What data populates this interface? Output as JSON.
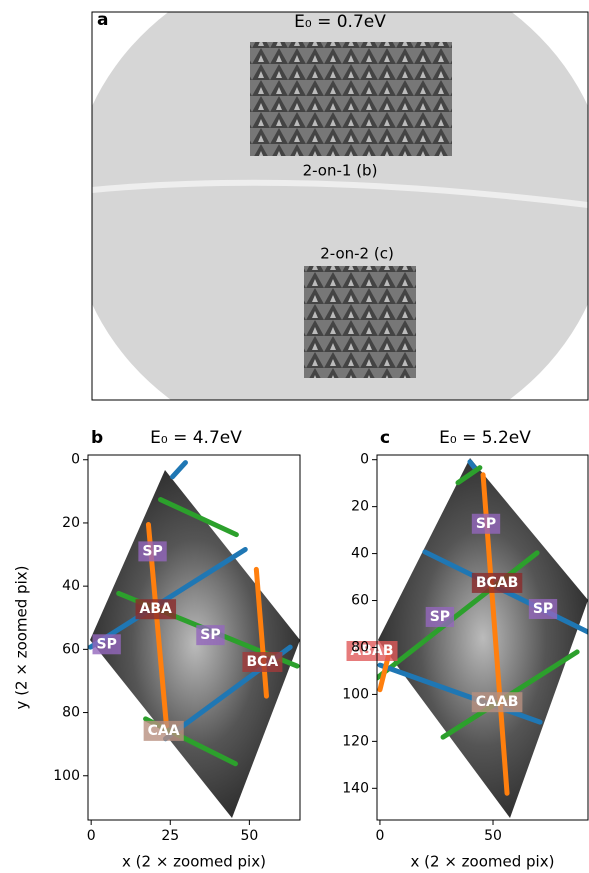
{
  "chart_data": [
    {
      "type": "image",
      "panel_label": "a",
      "title": "E₀ = 0.7eV",
      "annotations": [
        {
          "text": "2-on-1 (b)"
        },
        {
          "text": "2-on-2 (c)"
        }
      ]
    },
    {
      "type": "line",
      "panel_label": "b",
      "title": "E₀ = 4.7eV",
      "xlabel": "x (2 × zoomed pix)",
      "ylabel": "y (2 × zoomed pix)",
      "xlim": [
        -1,
        66
      ],
      "ylim": [
        114,
        -1.5
      ],
      "xticks": [
        0,
        25,
        50
      ],
      "yticks": [
        0,
        20,
        40,
        60,
        80,
        100
      ],
      "series": [
        {
          "color": "#1f77b4",
          "x": [
            25.7,
            29.8
          ],
          "y": [
            5.4,
            0.9
          ]
        },
        {
          "color": "#2ca02c",
          "x": [
            21.9,
            45.9
          ],
          "y": [
            12.6,
            23.7
          ]
        },
        {
          "color": "#1f77b4",
          "x": [
            -0.2,
            48.7
          ],
          "y": [
            59.3,
            28.4
          ]
        },
        {
          "color": "#2ca02c",
          "x": [
            8.7,
            65.1
          ],
          "y": [
            42.3,
            65.3
          ]
        },
        {
          "color": "#1f77b4",
          "x": [
            23.5,
            62.9
          ],
          "y": [
            88.3,
            59.3
          ]
        },
        {
          "color": "#2ca02c",
          "x": [
            17.2,
            45.6
          ],
          "y": [
            82,
            96.2
          ]
        },
        {
          "color": "#ff7f0e",
          "x": [
            18.1,
            23.8
          ],
          "y": [
            20.5,
            84.2
          ]
        },
        {
          "color": "#ff7f0e",
          "x": [
            52.2,
            55.4
          ],
          "y": [
            34.7,
            74.8
          ]
        }
      ],
      "annotations": [
        {
          "text": "SP",
          "x": 19.4,
          "y": 29,
          "color": "#9467bd"
        },
        {
          "text": "ABA",
          "x": 20.4,
          "y": 47.3,
          "color": "#8b2a2a"
        },
        {
          "text": "SP",
          "x": 37.7,
          "y": 55.5,
          "color": "#9467bd"
        },
        {
          "text": "SP",
          "x": 4.9,
          "y": 58.4,
          "color": "#9467bd"
        },
        {
          "text": "BCA",
          "x": 54.1,
          "y": 64,
          "color": "#a33a3a"
        },
        {
          "text": "CAA",
          "x": 22.9,
          "y": 85.8,
          "color": "#b89080"
        }
      ]
    },
    {
      "type": "line",
      "panel_label": "c",
      "title": "E₀ = 5.2eV",
      "xlabel": "x (2 × zoomed pix)",
      "xlim": [
        -1.3,
        92
      ],
      "ylim": [
        153.5,
        -2
      ],
      "xticks": [
        0,
        50
      ],
      "yticks": [
        0,
        20,
        40,
        60,
        80,
        100,
        120,
        140
      ],
      "series": [
        {
          "color": "#1f77b4",
          "x": [
            39.8,
            42.5
          ],
          "y": [
            0.9,
            4.3
          ]
        },
        {
          "color": "#2ca02c",
          "x": [
            34.5,
            44.2
          ],
          "y": [
            9.8,
            3.4
          ]
        },
        {
          "color": "#1f77b4",
          "x": [
            19.9,
            92
          ],
          "y": [
            39.3,
            73.4
          ]
        },
        {
          "color": "#2ca02c",
          "x": [
            -1.3,
            69.5
          ],
          "y": [
            93,
            39.7
          ]
        },
        {
          "color": "#1f77b4",
          "x": [
            0,
            70.8
          ],
          "y": [
            87.5,
            111.8
          ]
        },
        {
          "color": "#2ca02c",
          "x": [
            27.9,
            87.2
          ],
          "y": [
            118.2,
            81.9
          ]
        },
        {
          "color": "#ff7f0e",
          "x": [
            45.6,
            56.2
          ],
          "y": [
            6.4,
            142.1
          ]
        },
        {
          "color": "#ff7f0e",
          "x": [
            4.4,
            0
          ],
          "y": [
            81,
            98
          ]
        }
      ],
      "annotations": [
        {
          "text": "SP",
          "x": 46.9,
          "y": 27.3,
          "color": "#9467bd"
        },
        {
          "text": "BCAB",
          "x": 51.8,
          "y": 52.5,
          "color": "#8b2a2a"
        },
        {
          "text": "SP",
          "x": 26.5,
          "y": 67,
          "color": "#9467bd"
        },
        {
          "text": "SP",
          "x": 72.1,
          "y": 63.6,
          "color": "#9467bd"
        },
        {
          "text": "ABAB",
          "x": -3.5,
          "y": 81.5,
          "color": "#e05a5a"
        },
        {
          "text": "CAAB",
          "x": 51.8,
          "y": 103.3,
          "color": "#b89080"
        }
      ]
    }
  ]
}
